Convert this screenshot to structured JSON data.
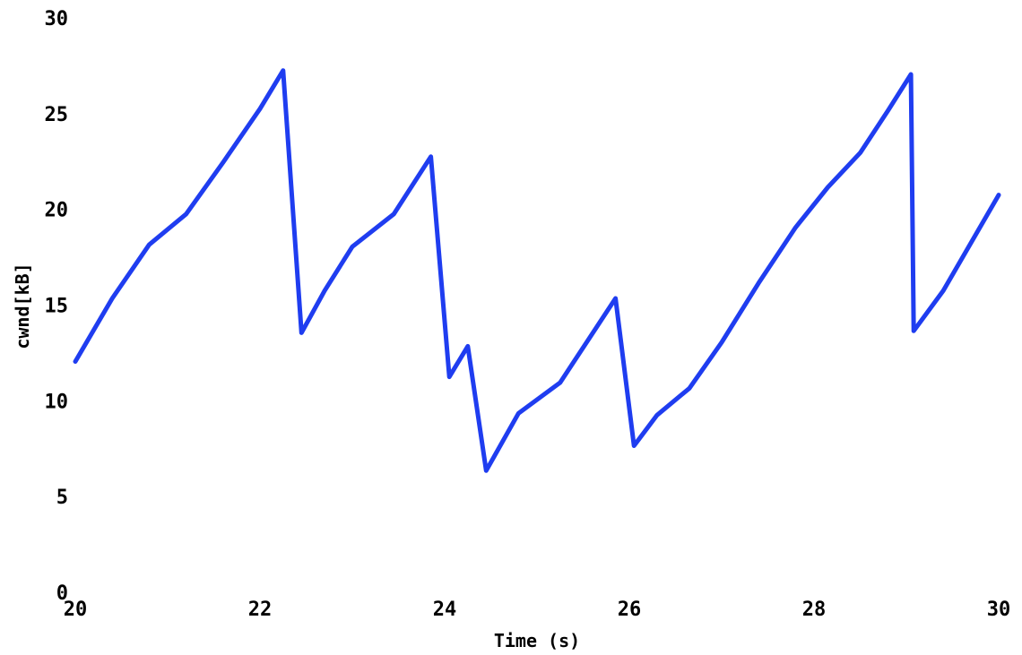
{
  "chart_data": {
    "type": "line",
    "title": "",
    "xlabel": "Time (s)",
    "ylabel": "cwnd[kB]",
    "xlim": [
      20,
      30
    ],
    "ylim": [
      0,
      30
    ],
    "x_ticks": [
      "20",
      "22",
      "24",
      "26",
      "28",
      "30"
    ],
    "y_ticks": [
      "0",
      "5",
      "10",
      "15",
      "20",
      "25",
      "30"
    ],
    "grid": false,
    "legend": "none",
    "series": [
      {
        "color": "#1f3df0",
        "x": [
          20.0,
          20.4,
          20.8,
          21.2,
          21.6,
          22.0,
          22.25,
          22.45,
          22.7,
          23.0,
          23.45,
          23.85,
          24.05,
          24.25,
          24.45,
          24.8,
          25.25,
          25.85,
          26.05,
          26.3,
          26.65,
          27.0,
          27.4,
          27.8,
          28.15,
          28.5,
          28.8,
          29.05,
          29.08,
          29.4,
          30.0
        ],
        "y": [
          12.1,
          15.4,
          18.2,
          19.8,
          22.5,
          25.3,
          27.3,
          13.6,
          15.8,
          18.1,
          19.8,
          22.8,
          11.3,
          12.9,
          6.4,
          9.4,
          11.0,
          15.4,
          7.7,
          9.3,
          10.7,
          13.1,
          16.2,
          19.1,
          21.2,
          23.0,
          25.2,
          27.1,
          13.7,
          15.8,
          20.8
        ]
      }
    ]
  }
}
